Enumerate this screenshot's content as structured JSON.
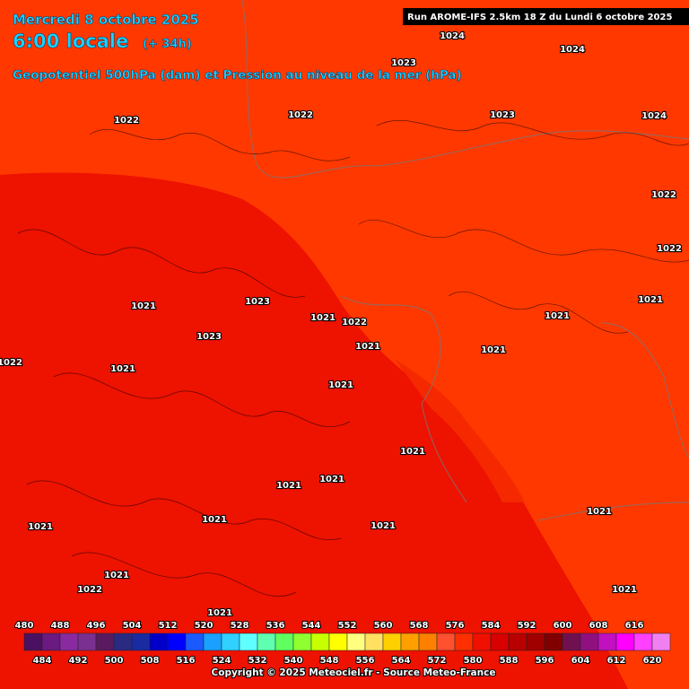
{
  "header": {
    "date": "Mercredi 8 octobre 2025",
    "time": "6:00 locale",
    "offset": "(+ 34h)",
    "subtitle": "Geopotentiel 500hPa (dam) et Pression au niveau de la mer (hPa)",
    "run": "Run AROME-IFS 2.5km 18 Z du Lundi 6 octobre 2025"
  },
  "pressure_labels": [
    "1024",
    "1024",
    "1023",
    "1022",
    "1022",
    "1023",
    "1024",
    "1022",
    "1022",
    "1021",
    "1023",
    "1021",
    "1022",
    "1021",
    "1021",
    "1023",
    "1021",
    "1021",
    "1022",
    "1021",
    "1021",
    "1021",
    "1021",
    "1021",
    "1021",
    "1021",
    "1021",
    "1021",
    "1021",
    "1022",
    "1021",
    "1021"
  ],
  "scale": {
    "values": [
      480,
      484,
      488,
      492,
      496,
      500,
      504,
      508,
      512,
      516,
      520,
      524,
      528,
      532,
      536,
      540,
      544,
      548,
      552,
      556,
      560,
      564,
      568,
      572,
      576,
      580,
      584,
      588,
      592,
      596,
      600,
      604,
      608,
      612,
      616,
      620
    ],
    "colors": [
      "#4b1060",
      "#6a1a80",
      "#8a2aa0",
      "#7a3090",
      "#5a1a60",
      "#2a2a80",
      "#1a2aa0",
      "#0000c8",
      "#0000ff",
      "#1a5aff",
      "#1aa0ff",
      "#30d0ff",
      "#60ffff",
      "#60ffb0",
      "#60ff60",
      "#90ff30",
      "#c8ff00",
      "#ffff00",
      "#ffff80",
      "#ffe060",
      "#ffd000",
      "#ffa000",
      "#ff8000",
      "#ff5030",
      "#ff3000",
      "#f01000",
      "#d80000",
      "#b80000",
      "#a00000",
      "#800000",
      "#701050",
      "#901080",
      "#c010c0",
      "#ff00ff",
      "#ff40ff",
      "#f080f0"
    ]
  },
  "footer": {
    "copyright": "Copyright © 2025 Meteociel.fr - Source Meteo-France"
  }
}
